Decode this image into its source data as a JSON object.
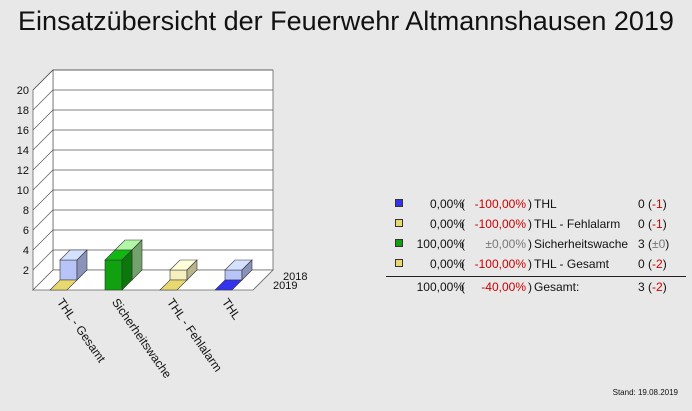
{
  "title": "Einsatzübersicht der Feuerwehr Altmannshausen 2019",
  "stand": "Stand: 19.08.2019",
  "colors": {
    "thl": "#3333ee",
    "thl_2018": "#b8c4f8",
    "fehlalarm": "#e8d870",
    "fehlalarm_2018": "#f6efbe",
    "sicherheitswache": "#10a010",
    "sicherheitswache_2018": "#9ad890",
    "gesamt": "#e8d870",
    "gesamt_2018": "#b8c4f8"
  },
  "chart_data": {
    "type": "bar",
    "categories": [
      "THL - Gesamt",
      "Sicherheitswache",
      "THL - Fehlalarm",
      "THL"
    ],
    "series": [
      {
        "name": "2018",
        "values": [
          2,
          3,
          1,
          1
        ]
      },
      {
        "name": "2019",
        "values": [
          0,
          3,
          0,
          0
        ]
      }
    ],
    "ylim": [
      0,
      20
    ],
    "yticks": [
      "2",
      "4",
      "6",
      "8",
      "10",
      "12",
      "14",
      "16",
      "18",
      "20"
    ],
    "grid": true
  },
  "legend": {
    "rows": [
      {
        "pct": "0,00%",
        "open": "(",
        "chg": "-100,00%",
        "close": ")",
        "name": "THL",
        "count": "0",
        "diff": "-1",
        "color": "#3333ee",
        "chg_color": "red"
      },
      {
        "pct": "0,00%",
        "open": "(",
        "chg": "-100,00%",
        "close": ")",
        "name": "THL - Fehlalarm",
        "count": "0",
        "diff": "-1",
        "color": "#e8d870",
        "chg_color": "red"
      },
      {
        "pct": "100,00%",
        "open": "(",
        "chg": "±0,00%",
        "close": ")",
        "name": "Sicherheitswache",
        "count": "3",
        "diff": "±0",
        "color": "#10a010",
        "chg_color": "gray"
      },
      {
        "pct": "0,00%",
        "open": "(",
        "chg": "-100,00%",
        "close": ")",
        "name": "THL - Gesamt",
        "count": "0",
        "diff": "-2",
        "color": "#e8d870",
        "chg_color": "red"
      }
    ],
    "total": {
      "pct": "100,00%",
      "open": "(",
      "chg": "-40,00%",
      "close": ")",
      "name": "Gesamt:",
      "count": "3",
      "diff": "-2"
    }
  }
}
